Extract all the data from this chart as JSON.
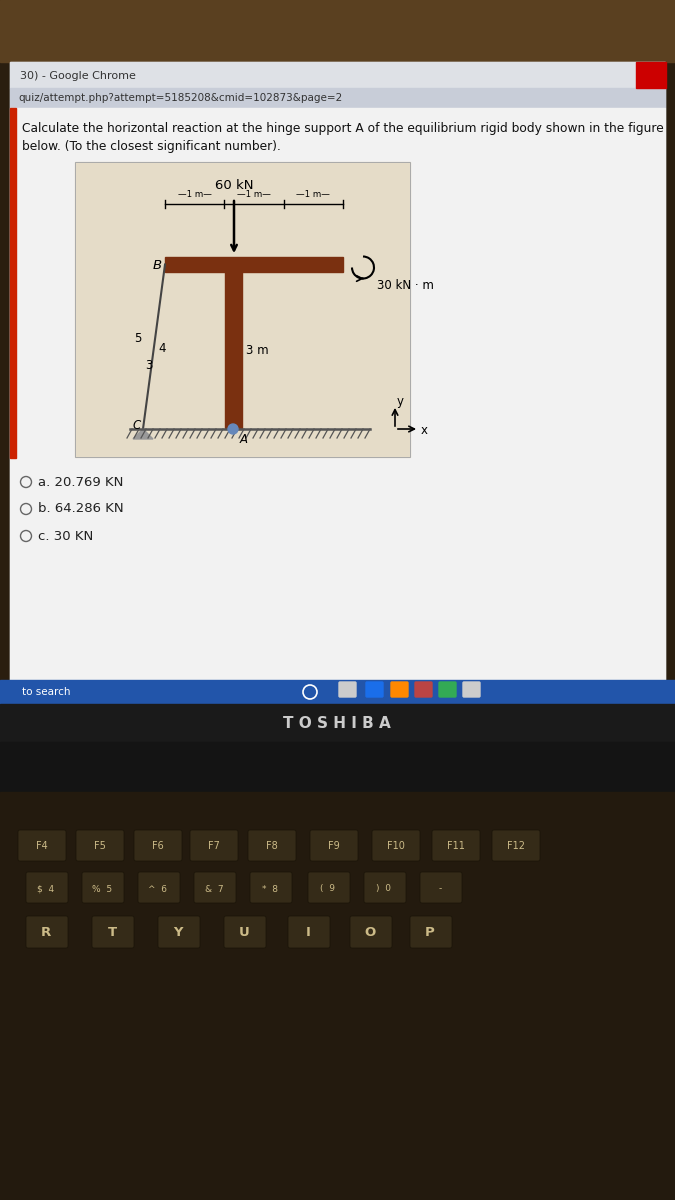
{
  "title_bar_text": "30) - Google Chrome",
  "url_text": "quiz/attempt.php?attempt=5185208&cmid=102873&page=2",
  "question_line1": "Calculate the horizontal reaction at the hinge support A of the equilibrium rigid body shown in the figure",
  "question_line2": "below. (To the closest significant number).",
  "options": [
    "a. 20.769 KN",
    "b. 64.286 KN",
    "c. 30 KN"
  ],
  "load_text": "60 kN",
  "moment_text": "30 kN · m",
  "dim_texts": [
    "1 m",
    "1 m",
    "1 m"
  ],
  "height_text": "3 m",
  "triangle_labels": [
    "5",
    "4",
    "3"
  ],
  "node_labels": [
    "B",
    "C",
    "A"
  ],
  "axis_x": "x",
  "axis_y": "y",
  "toshiba_text": "T O S H I B A",
  "fkeys": [
    "F4",
    "F5",
    "F6",
    "F7",
    "F8",
    "F9",
    "F10",
    "F11",
    "F12"
  ],
  "letterrow": [
    "R",
    "T",
    "Y",
    "U",
    "I",
    "O",
    "P"
  ],
  "colors": {
    "laptop_outer": "#2a1e0f",
    "screen_bg": "#bebebe",
    "chrome_titlebar": "#dee1e6",
    "chrome_urlbar": "#c8cdd8",
    "content_white": "#f2f2f2",
    "left_red": "#cc2200",
    "diagram_bg": "#e5dcc8",
    "beam": "#7a3010",
    "column": "#7a3010",
    "ground_gray": "#666666",
    "hinge_blue": "#6688bb",
    "taskbar_blue": "#2255aa",
    "bezel_dark": "#1a1a1a",
    "speaker_dark": "#141414",
    "keyboard_bg": "#231a0e",
    "key_bg": "#352b18",
    "key_text": "#ccbb88",
    "close_red": "#cc0000",
    "toshiba_gray": "#cccccc"
  }
}
